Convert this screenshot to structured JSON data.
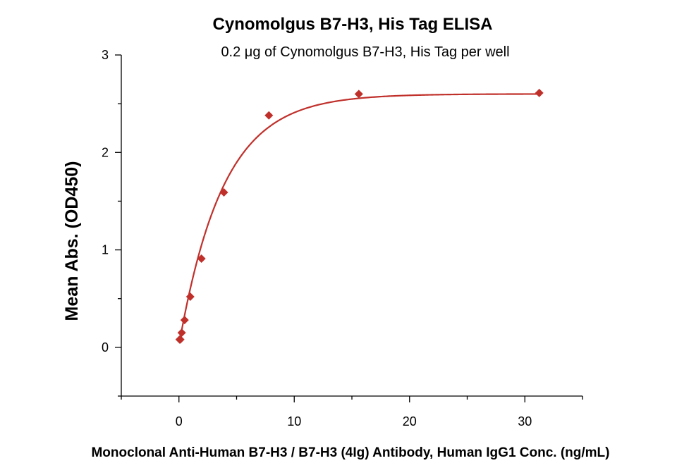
{
  "chart_data": {
    "type": "scatter",
    "title": "Cynomolgus B7-H3, His Tag ELISA",
    "subtitle": "0.2 μg of Cynomolgus B7-H3, His Tag per well",
    "xlabel": "Monoclonal Anti-Human B7-H3 / B7-H3 (4Ig) Antibody, Human IgG1 Conc. (ng/mL)",
    "ylabel": "Mean Abs. (OD450)",
    "xlim": [
      -5,
      35
    ],
    "ylim": [
      -0.5,
      3
    ],
    "xticks": [
      0,
      10,
      20,
      30
    ],
    "yticks": [
      0,
      1,
      2,
      3
    ],
    "grid": false,
    "color": "#c0302b",
    "points": [
      {
        "x": 0.06,
        "y": 0.08
      },
      {
        "x": 0.12,
        "y": 0.08
      },
      {
        "x": 0.24,
        "y": 0.15
      },
      {
        "x": 0.49,
        "y": 0.28
      },
      {
        "x": 0.98,
        "y": 0.52
      },
      {
        "x": 1.95,
        "y": 0.91
      },
      {
        "x": 3.9,
        "y": 1.59
      },
      {
        "x": 7.8,
        "y": 2.38
      },
      {
        "x": 15.6,
        "y": 2.6
      },
      {
        "x": 31.25,
        "y": 2.61
      }
    ],
    "fit": {
      "model": "exponential-saturation",
      "y0": 0.02,
      "top": 2.6,
      "k": 0.26
    }
  }
}
